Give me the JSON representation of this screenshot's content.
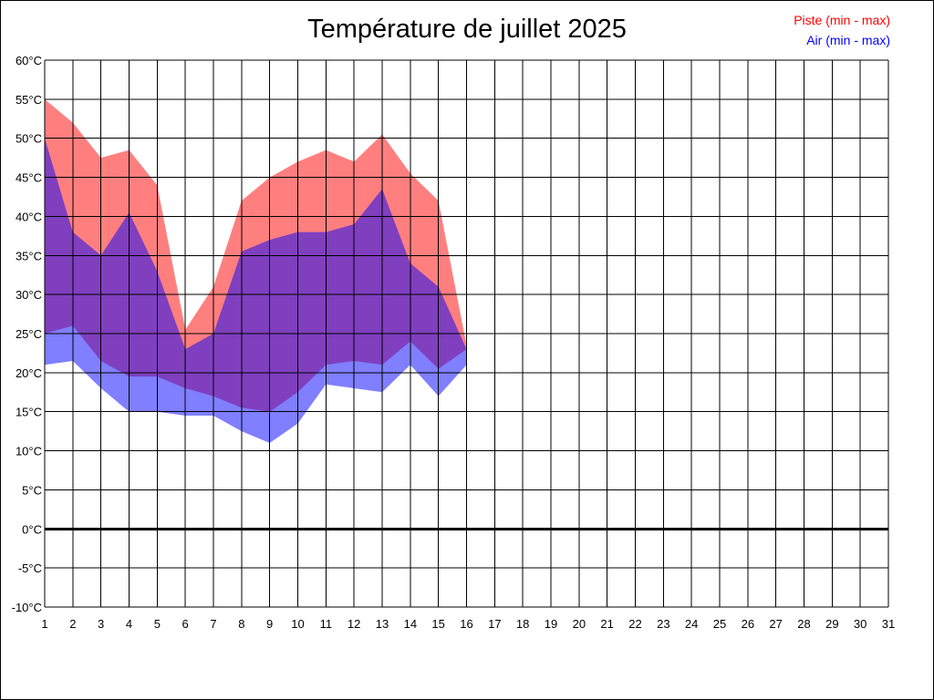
{
  "chart_data": {
    "type": "area",
    "title": "Température de juillet 2025",
    "xlabel": "",
    "ylabel": "",
    "x": [
      1,
      2,
      3,
      4,
      5,
      6,
      7,
      8,
      9,
      10,
      11,
      12,
      13,
      14,
      15,
      16
    ],
    "x_ticks": [
      "1",
      "2",
      "3",
      "4",
      "5",
      "6",
      "7",
      "8",
      "9",
      "10",
      "11",
      "12",
      "13",
      "14",
      "15",
      "16",
      "17",
      "18",
      "19",
      "20",
      "21",
      "22",
      "23",
      "24",
      "25",
      "26",
      "27",
      "28",
      "29",
      "30",
      "31"
    ],
    "y_ticks": [
      "60°C",
      "55°C",
      "50°C",
      "45°C",
      "40°C",
      "35°C",
      "30°C",
      "25°C",
      "20°C",
      "15°C",
      "10°C",
      "5°C",
      "0°C",
      "-5°C",
      "-10°C"
    ],
    "xlim": [
      1,
      31
    ],
    "ylim": [
      -10,
      60
    ],
    "grid": true,
    "legend_position": "top-right",
    "series": [
      {
        "name": "Piste (min - max)",
        "color": "#ff0000",
        "min": [
          25,
          26,
          21.5,
          19.5,
          19.5,
          18,
          17,
          15.5,
          15,
          17.5,
          21,
          21.5,
          21,
          24,
          20.5,
          23
        ],
        "max": [
          55,
          52,
          47.5,
          48.5,
          44,
          25.5,
          31,
          42,
          45,
          47,
          48.5,
          47,
          50.5,
          45.5,
          42,
          23.5
        ]
      },
      {
        "name": "Air (min - max)",
        "color": "#0000ff",
        "min": [
          21,
          21.5,
          18,
          15,
          15,
          14.5,
          14.5,
          12.5,
          11,
          13.5,
          18.5,
          18,
          17.5,
          21,
          17,
          21
        ],
        "max": [
          50,
          38,
          35,
          40.5,
          33,
          23,
          25,
          35.5,
          37,
          38,
          38,
          39,
          43.5,
          34,
          31,
          23
        ]
      }
    ]
  }
}
